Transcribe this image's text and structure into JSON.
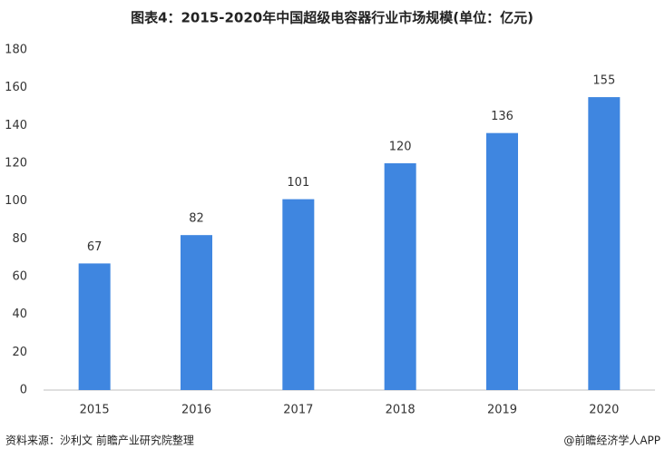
{
  "chart_data": {
    "type": "bar",
    "title": "图表4：2015-2020年中国超级电容器行业市场规模(单位：亿元)",
    "categories": [
      "2015",
      "2016",
      "2017",
      "2018",
      "2019",
      "2020"
    ],
    "values": [
      67,
      82,
      101,
      120,
      136,
      155
    ],
    "color": "#3f86e0",
    "ylim": [
      0,
      180
    ],
    "yticks": [
      0,
      20,
      40,
      60,
      80,
      100,
      120,
      140,
      160,
      180
    ],
    "grid": false,
    "source": "资料来源：沙利文 前瞻产业研究院整理",
    "credit": "@前瞻经济学人APP"
  }
}
